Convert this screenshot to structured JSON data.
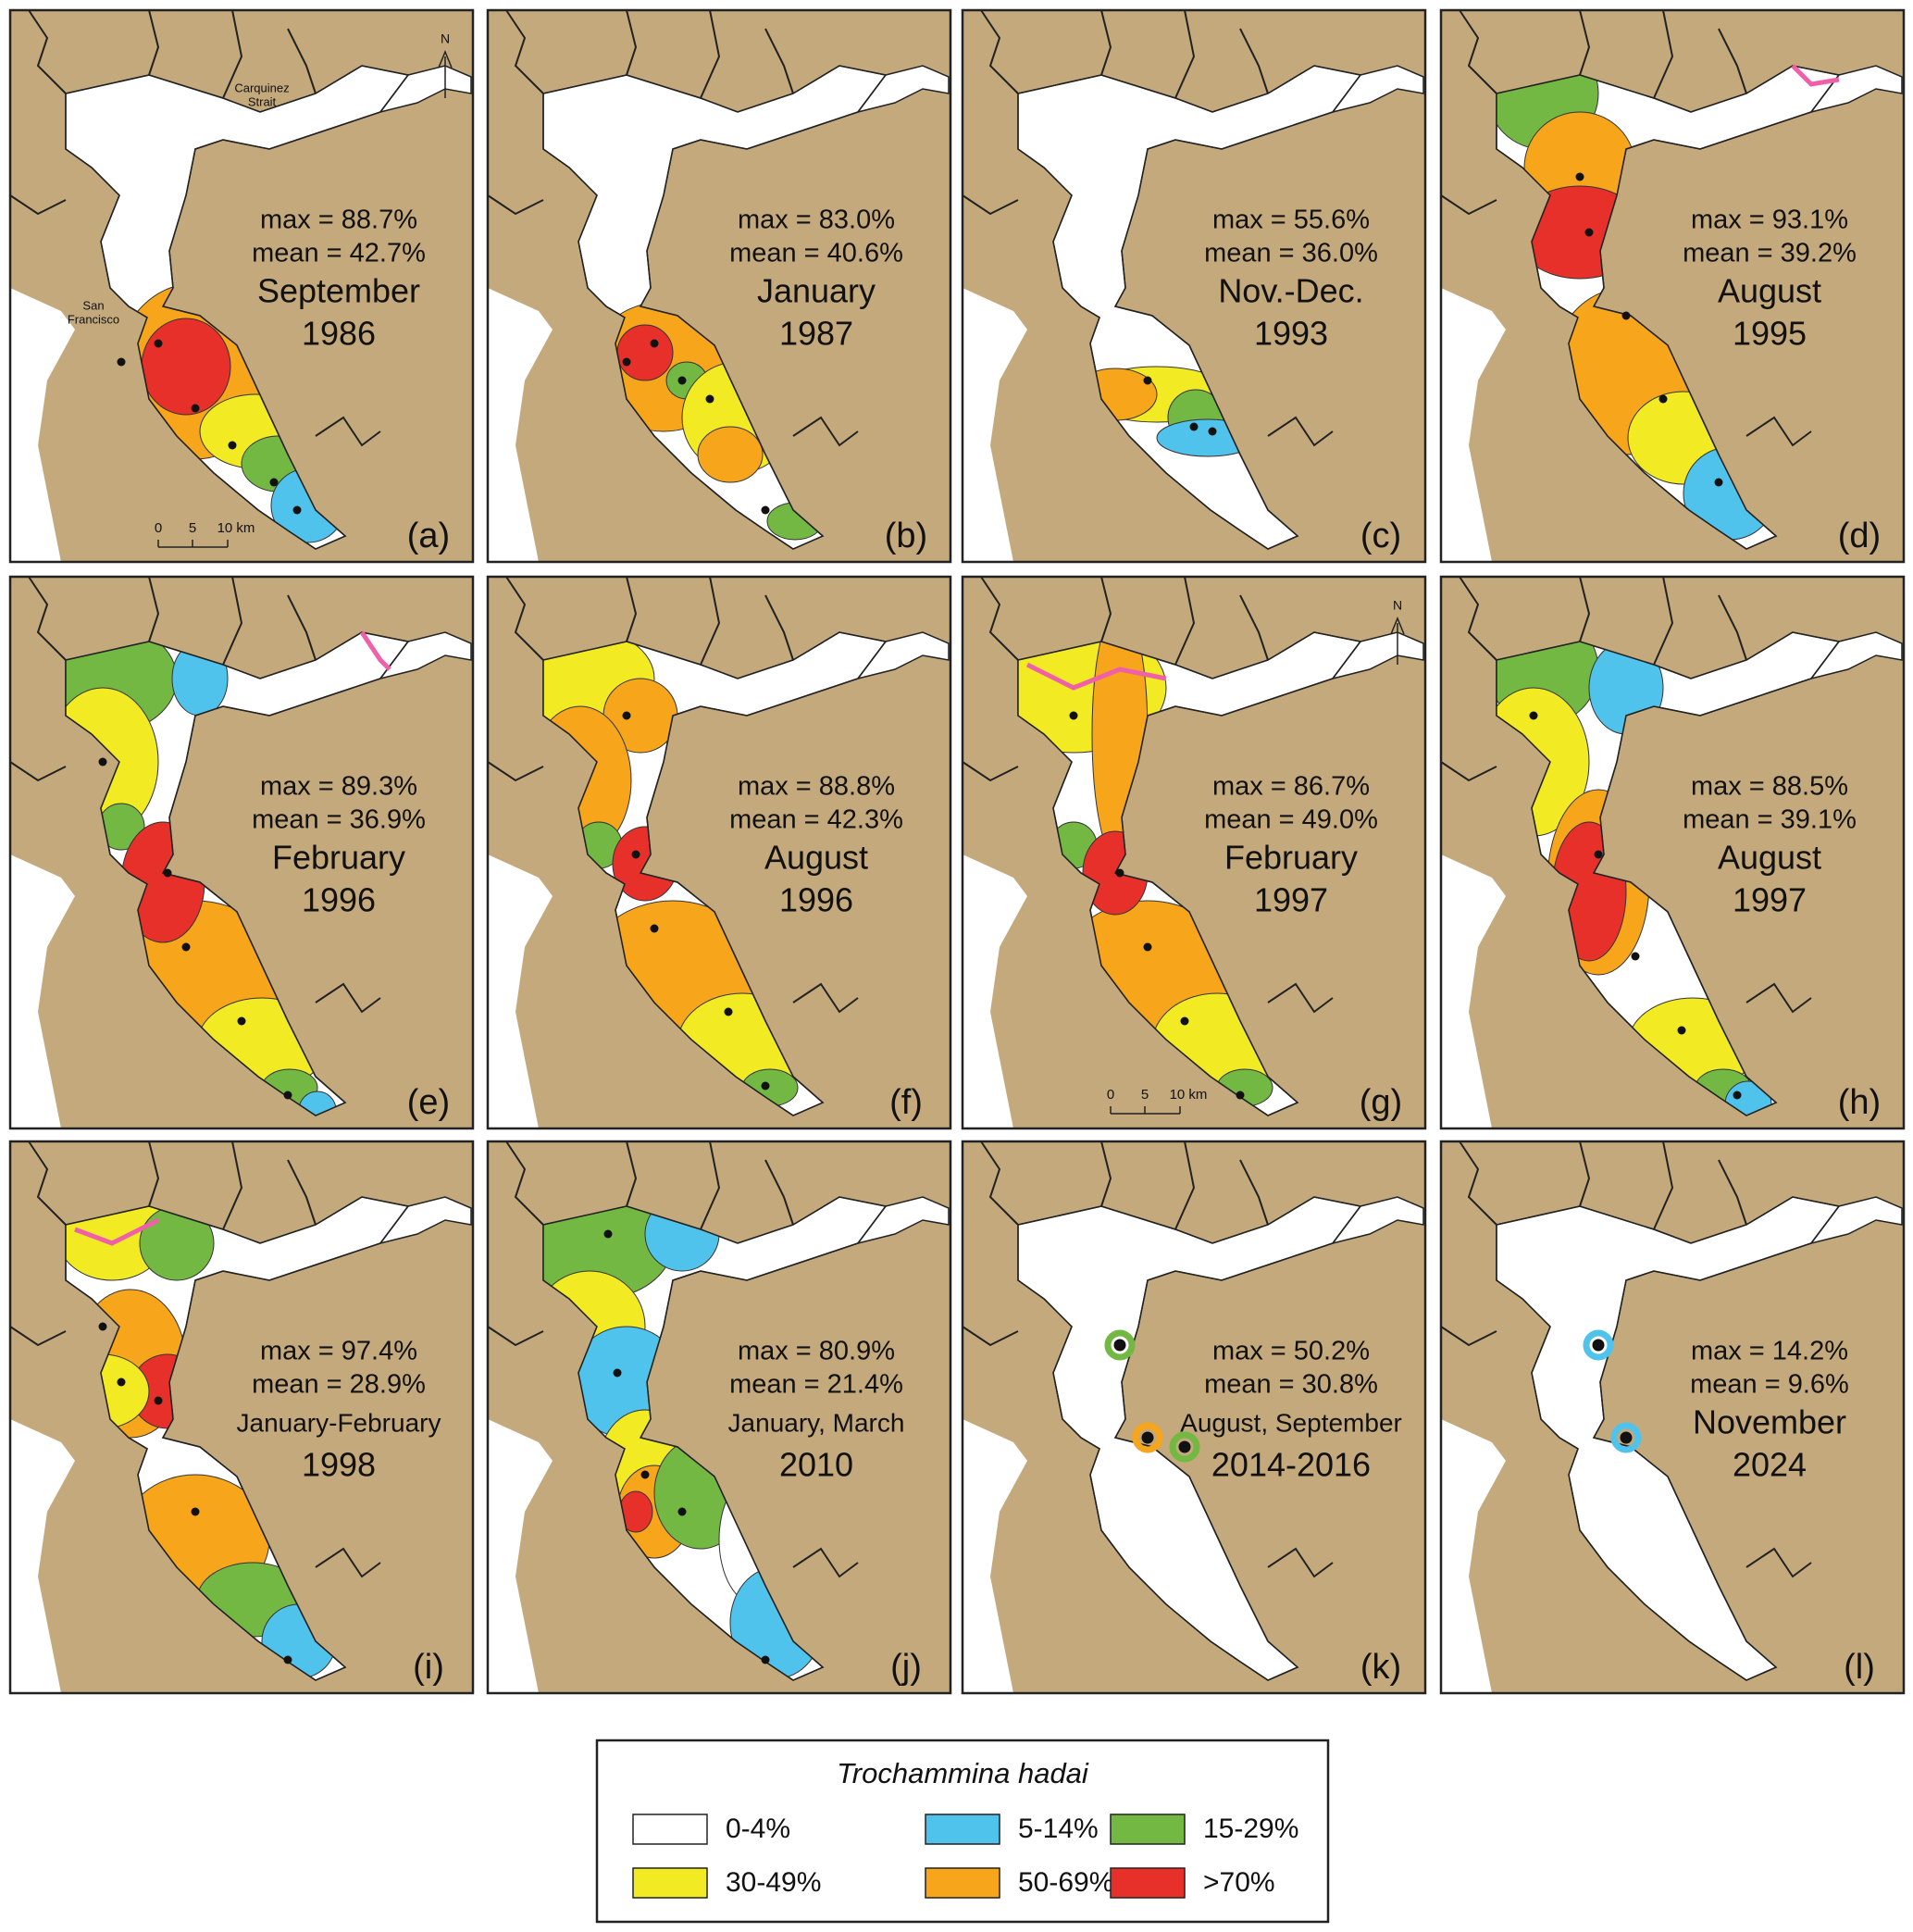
{
  "panels": [
    {
      "letter": "(a)",
      "max": "max = 88.7%",
      "mean": "mean = 42.7%",
      "period": "September",
      "year": "1986",
      "north": "N",
      "scale": [
        "0",
        "5",
        "10 km"
      ],
      "places": [
        [
          "Carquinez",
          "Strait"
        ],
        [
          "San",
          "Francisco"
        ]
      ]
    },
    {
      "letter": "(b)",
      "max": "max = 83.0%",
      "mean": "mean = 40.6%",
      "period": "January",
      "year": "1987"
    },
    {
      "letter": "(c)",
      "max": "max = 55.6%",
      "mean": "mean = 36.0%",
      "period": "Nov.-Dec.",
      "year": "1993"
    },
    {
      "letter": "(d)",
      "max": "max = 93.1%",
      "mean": "mean = 39.2%",
      "period": "August",
      "year": "1995"
    },
    {
      "letter": "(e)",
      "max": "max = 89.3%",
      "mean": "mean = 36.9%",
      "period": "February",
      "year": "1996"
    },
    {
      "letter": "(f)",
      "max": "max = 88.8%",
      "mean": "mean = 42.3%",
      "period": "August",
      "year": "1996"
    },
    {
      "letter": "(g)",
      "max": "max = 86.7%",
      "mean": "mean = 49.0%",
      "period": "February",
      "year": "1997",
      "north": "N",
      "scale": [
        "0",
        "5",
        "10 km"
      ]
    },
    {
      "letter": "(h)",
      "max": "max = 88.5%",
      "mean": "mean = 39.1%",
      "period": "August",
      "year": "1997"
    },
    {
      "letter": "(i)",
      "max": "max = 97.4%",
      "mean": "mean = 28.9%",
      "period": "January-February",
      "year": "1998"
    },
    {
      "letter": "(j)",
      "max": "max = 80.9%",
      "mean": "mean = 21.4%",
      "period": "January, March",
      "year": "2010"
    },
    {
      "letter": "(k)",
      "max": "max = 50.2%",
      "mean": "mean = 30.8%",
      "period": "August, September",
      "year": "2014-2016"
    },
    {
      "letter": "(l)",
      "max": "max = 14.2%",
      "mean": "mean = 9.6%",
      "period": "November",
      "year": "2024"
    }
  ],
  "legend": {
    "title": "Trochammina hadai",
    "items": [
      {
        "label": "0-4%",
        "color": "#ffffff"
      },
      {
        "label": "5-14%",
        "color": "#4fc3ec"
      },
      {
        "label": "15-29%",
        "color": "#72b843"
      },
      {
        "label": "30-49%",
        "color": "#f2ea22"
      },
      {
        "label": "50-69%",
        "color": "#f7a51b"
      },
      {
        "label": ">70%",
        "color": "#e8302a"
      }
    ]
  },
  "land_color": "#c4a97c"
}
